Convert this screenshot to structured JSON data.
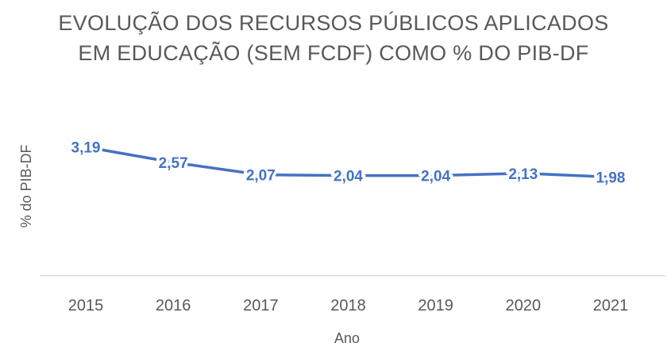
{
  "chart_data": {
    "type": "line",
    "title_lines": [
      "EVOLUÇÃO DOS RECURSOS PÚBLICOS APLICADOS",
      "EM EDUCAÇÃO (SEM FCDF) COMO % DO PIB-DF"
    ],
    "xlabel": "Ano",
    "ylabel": "% do PIB-DF",
    "categories": [
      "2015",
      "2016",
      "2017",
      "2018",
      "2019",
      "2020",
      "2021"
    ],
    "series": [
      {
        "values": [
          3.19,
          2.57,
          2.07,
          2.04,
          2.04,
          2.13,
          1.98
        ],
        "labels": [
          "3,19",
          "2,57",
          "2,07",
          "2,04",
          "2,04",
          "2,13",
          "1,98"
        ],
        "color": "#4472c4"
      }
    ],
    "ylim": [
      -2.0,
      4.2
    ],
    "grid": false,
    "axis_color": "#d9d9d9",
    "text_color": "#595959"
  }
}
